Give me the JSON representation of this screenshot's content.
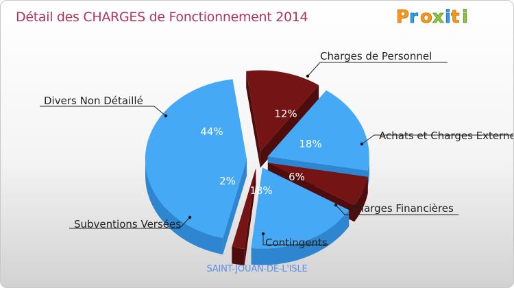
{
  "title": "Détail des CHARGES de Fonctionnement 2014",
  "logo": {
    "text": "Proxiti",
    "letters": [
      "P",
      "r",
      "o",
      "x",
      "i",
      "t",
      "i"
    ]
  },
  "footer": "SAINT-JOUAN-DE-L'ISLE",
  "colors": {
    "red": "#741414",
    "red_side": "#4e0c0c",
    "blue": "#46a9f5",
    "blue_side": "#2e86d0",
    "title": "#b0335a"
  },
  "chart_data": {
    "type": "pie",
    "title": "Détail des CHARGES de Fonctionnement 2014",
    "unit": "%",
    "slices": [
      {
        "label": "Charges de Personnel",
        "value": 12,
        "pct_label": "12%",
        "color": "#741414"
      },
      {
        "label": "Achats et Charges Externes",
        "value": 18,
        "pct_label": "18%",
        "color": "#46a9f5"
      },
      {
        "label": "Charges Financières",
        "value": 6,
        "pct_label": "6%",
        "color": "#741414"
      },
      {
        "label": "Contingents",
        "value": 18,
        "pct_label": "18%",
        "color": "#46a9f5"
      },
      {
        "label": "Subventions Versées",
        "value": 2,
        "pct_label": "2%",
        "color": "#741414"
      },
      {
        "label": "Divers Non Détaillé",
        "value": 44,
        "pct_label": "44%",
        "color": "#46a9f5"
      }
    ]
  }
}
